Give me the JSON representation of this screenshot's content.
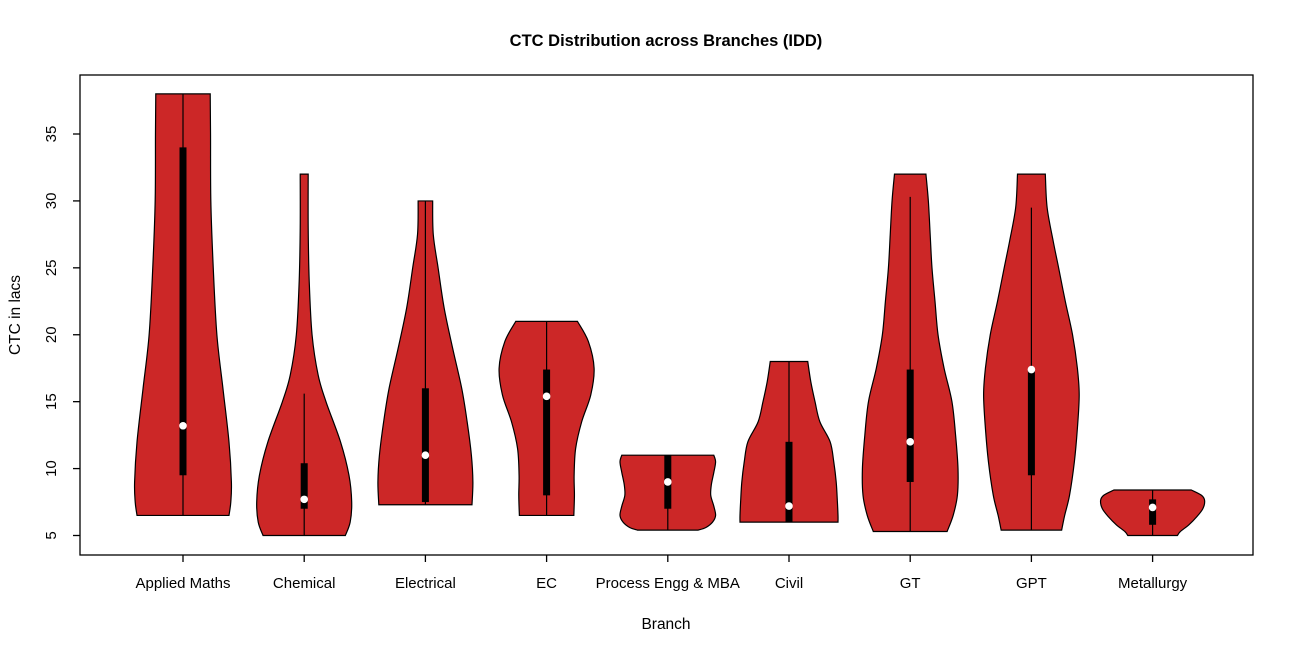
{
  "window": {
    "background_color": "#FFFFFF"
  },
  "chart_data": {
    "type": "violin",
    "title": "CTC Distribution across Branches (IDD)",
    "xlabel": "Branch",
    "ylabel": "CTC in lacs",
    "ylim": [
      3.5,
      39.4
    ],
    "yticks": [
      5,
      10,
      15,
      20,
      25,
      30,
      35
    ],
    "grid": false,
    "legend": "none",
    "fill_color": "#CC2727",
    "outline_color": "#000000",
    "box_color": "#000000",
    "median_dot_color": "#FFFFFF",
    "categories": [
      "Applied Maths",
      "Chemical",
      "Electrical",
      "EC",
      "Process Engg & MBA",
      "Civil",
      "GT",
      "GPT",
      "Metallurgy"
    ],
    "series": [
      {
        "label": "Applied Maths",
        "min": 6.5,
        "max": 38,
        "q1": 9.5,
        "median": 13.2,
        "q3": 34,
        "whisker_low": 6.5,
        "whisker_high": 38,
        "profile": [
          [
            38,
            0.45
          ],
          [
            35,
            0.455
          ],
          [
            30,
            0.46
          ],
          [
            25,
            0.5
          ],
          [
            20,
            0.56
          ],
          [
            16,
            0.66
          ],
          [
            12,
            0.76
          ],
          [
            9,
            0.8
          ],
          [
            7.5,
            0.79
          ],
          [
            6.5,
            0.76
          ]
        ]
      },
      {
        "label": "Chemical",
        "min": 5,
        "max": 32,
        "q1": 7,
        "median": 7.7,
        "q3": 10.4,
        "whisker_low": 5,
        "whisker_high": 15.6,
        "profile": [
          [
            32,
            0.066
          ],
          [
            28,
            0.066
          ],
          [
            24,
            0.083
          ],
          [
            20,
            0.13
          ],
          [
            17,
            0.23
          ],
          [
            15,
            0.36
          ],
          [
            12,
            0.6
          ],
          [
            9.5,
            0.74
          ],
          [
            7.5,
            0.785
          ],
          [
            6,
            0.76
          ],
          [
            5,
            0.68
          ]
        ]
      },
      {
        "label": "Electrical",
        "min": 7.3,
        "max": 30,
        "q1": 7.5,
        "median": 11,
        "q3": 16,
        "whisker_low": 7.3,
        "whisker_high": 30,
        "profile": [
          [
            30,
            0.12
          ],
          [
            27.5,
            0.13
          ],
          [
            25,
            0.21
          ],
          [
            22,
            0.31
          ],
          [
            19,
            0.45
          ],
          [
            16,
            0.6
          ],
          [
            13.5,
            0.69
          ],
          [
            11,
            0.76
          ],
          [
            9,
            0.785
          ],
          [
            7.3,
            0.77
          ]
        ]
      },
      {
        "label": "EC",
        "min": 6.5,
        "max": 21,
        "q1": 8,
        "median": 15.4,
        "q3": 17.4,
        "whisker_low": 6.5,
        "whisker_high": 21,
        "profile": [
          [
            21,
            0.51
          ],
          [
            19.5,
            0.69
          ],
          [
            17.5,
            0.785
          ],
          [
            15.5,
            0.73
          ],
          [
            13.5,
            0.58
          ],
          [
            11.5,
            0.48
          ],
          [
            9.5,
            0.455
          ],
          [
            8,
            0.46
          ],
          [
            6.5,
            0.45
          ]
        ]
      },
      {
        "label": "Process Engg & MBA",
        "min": 5.4,
        "max": 11,
        "q1": 7,
        "median": 9,
        "q3": 11,
        "whisker_low": 5.4,
        "whisker_high": 11,
        "profile": [
          [
            11,
            0.76
          ],
          [
            10.5,
            0.79
          ],
          [
            9.7,
            0.76
          ],
          [
            8.8,
            0.72
          ],
          [
            8,
            0.71
          ],
          [
            7.2,
            0.76
          ],
          [
            6.5,
            0.79
          ],
          [
            6,
            0.74
          ],
          [
            5.6,
            0.63
          ],
          [
            5.4,
            0.5
          ]
        ]
      },
      {
        "label": "Civil",
        "min": 6,
        "max": 18,
        "q1": 6,
        "median": 7.2,
        "q3": 12,
        "whisker_low": 6,
        "whisker_high": 18,
        "profile": [
          [
            18,
            0.31
          ],
          [
            16.5,
            0.36
          ],
          [
            15,
            0.43
          ],
          [
            13.5,
            0.51
          ],
          [
            12,
            0.68
          ],
          [
            10.5,
            0.74
          ],
          [
            9,
            0.78
          ],
          [
            7.5,
            0.8
          ],
          [
            6.5,
            0.81
          ],
          [
            6,
            0.81
          ]
        ]
      },
      {
        "label": "GT",
        "min": 5.3,
        "max": 32,
        "q1": 9,
        "median": 12,
        "q3": 17.4,
        "whisker_low": 5.3,
        "whisker_high": 30.3,
        "profile": [
          [
            32,
            0.26
          ],
          [
            30,
            0.3
          ],
          [
            27.5,
            0.33
          ],
          [
            25,
            0.36
          ],
          [
            22.5,
            0.41
          ],
          [
            20,
            0.46
          ],
          [
            17.5,
            0.56
          ],
          [
            15,
            0.69
          ],
          [
            12.5,
            0.75
          ],
          [
            10,
            0.79
          ],
          [
            8,
            0.78
          ],
          [
            6.5,
            0.71
          ],
          [
            5.3,
            0.61
          ]
        ]
      },
      {
        "label": "GPT",
        "min": 5.4,
        "max": 32,
        "q1": 9.5,
        "median": 17.4,
        "q3": 17.4,
        "whisker_low": 5.4,
        "whisker_high": 29.5,
        "profile": [
          [
            32,
            0.23
          ],
          [
            29.5,
            0.26
          ],
          [
            27,
            0.36
          ],
          [
            25,
            0.45
          ],
          [
            22.5,
            0.56
          ],
          [
            20,
            0.68
          ],
          [
            17.5,
            0.76
          ],
          [
            15.5,
            0.79
          ],
          [
            13,
            0.76
          ],
          [
            10.5,
            0.71
          ],
          [
            8,
            0.63
          ],
          [
            6.5,
            0.55
          ],
          [
            5.4,
            0.5
          ]
        ]
      },
      {
        "label": "Metallurgy",
        "min": 5,
        "max": 8.4,
        "q1": 5.8,
        "median": 7.1,
        "q3": 7.7,
        "whisker_low": 5,
        "whisker_high": 8.4,
        "profile": [
          [
            8.4,
            0.64
          ],
          [
            8,
            0.81
          ],
          [
            7.6,
            0.86
          ],
          [
            7,
            0.83
          ],
          [
            6.4,
            0.73
          ],
          [
            5.8,
            0.6
          ],
          [
            5.3,
            0.46
          ],
          [
            5,
            0.41
          ]
        ]
      }
    ]
  }
}
